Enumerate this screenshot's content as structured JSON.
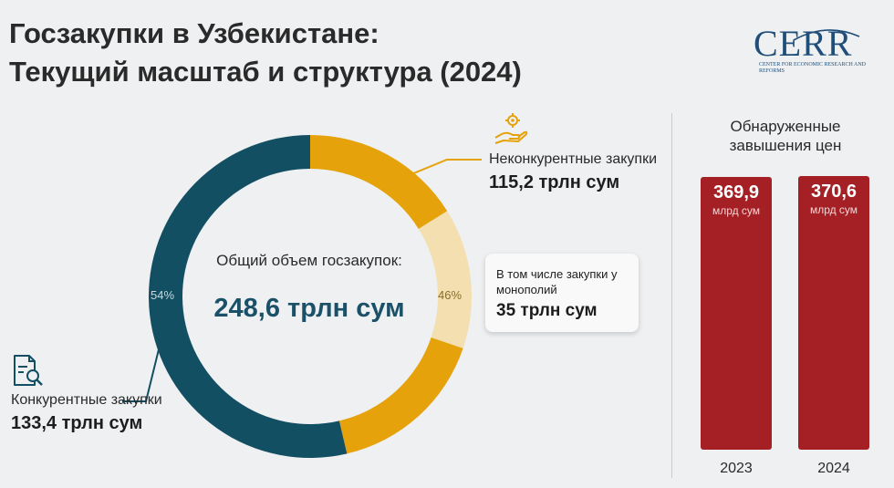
{
  "header": {
    "title_line1": "Госзакупки в Узбекистане:",
    "title_line2": "Текущий масштаб и структура (2024)"
  },
  "logo": {
    "name": "CERR",
    "subtitle": "Center for Economic Research and Reforms"
  },
  "colors": {
    "competitive": "#134f63",
    "noncompetitive": "#e5a20b",
    "monopoly": "#f3dfb0",
    "bars": "#a52025"
  },
  "chart_data": [
    {
      "type": "pie",
      "title": "",
      "center_label": "Общий объем госзакупок:",
      "center_value": "248,6 трлн сум",
      "slices": [
        {
          "label": "Конкурентные закупки",
          "value": 133.4,
          "value_text": "133,4 трлн сум",
          "percent_label": "54%"
        },
        {
          "label": "Неконкурентные закупки",
          "value": 115.2,
          "value_text": "115,2 трлн сум",
          "percent_label": "46%",
          "sub": {
            "label": "В том числе закупки у монополий",
            "value": 35,
            "value_text": "35 трлн сум"
          }
        }
      ]
    },
    {
      "type": "bar",
      "title": "Обнаруженные завышения цен",
      "categories": [
        "2023",
        "2024"
      ],
      "values": [
        369.9,
        370.6
      ],
      "value_labels": [
        "369,9",
        "370,6"
      ],
      "unit": "млрд сум",
      "ylim": [
        0,
        370.6
      ]
    }
  ]
}
